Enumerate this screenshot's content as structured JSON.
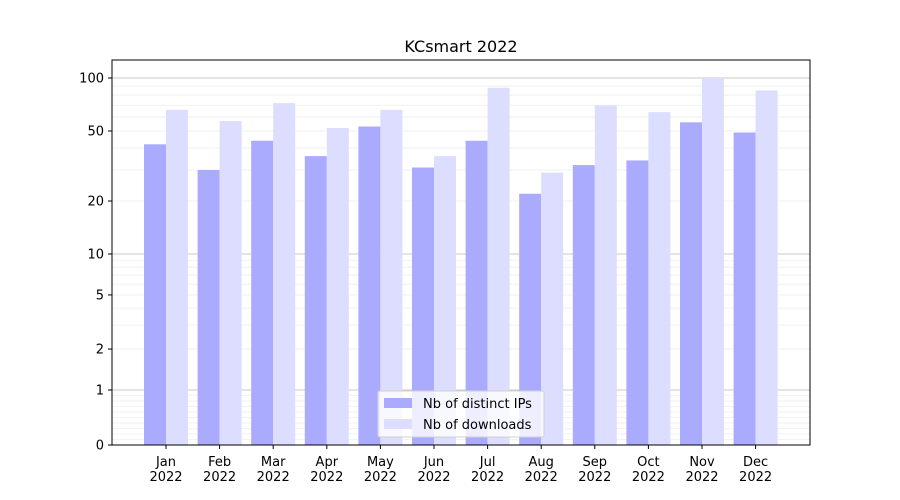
{
  "chart_data": {
    "type": "bar",
    "title": "KCsmart 2022",
    "xlabel": "",
    "ylabel": "",
    "yscale": "symlog",
    "ylim": [
      0,
      120
    ],
    "yticks": [
      0,
      1,
      2,
      5,
      10,
      20,
      50,
      100
    ],
    "ytick_labels": [
      "0",
      "1",
      "2",
      "5",
      "10",
      "20",
      "50",
      "100"
    ],
    "categories": [
      "Jan\n2022",
      "Feb\n2022",
      "Mar\n2022",
      "Apr\n2022",
      "May\n2022",
      "Jun\n2022",
      "Jul\n2022",
      "Aug\n2022",
      "Sep\n2022",
      "Oct\n2022",
      "Nov\n2022",
      "Dec\n2022"
    ],
    "series": [
      {
        "name": "Nb of distinct IPs",
        "color": "#aaaaff",
        "values": [
          42,
          30,
          44,
          36,
          53,
          31,
          44,
          22,
          32,
          34,
          56,
          49
        ]
      },
      {
        "name": "Nb of downloads",
        "color": "#ddddff",
        "values": [
          66,
          57,
          72,
          52,
          66,
          36,
          88,
          29,
          70,
          64,
          100,
          85
        ]
      }
    ],
    "legend": "bottom-center",
    "grid": true
  }
}
